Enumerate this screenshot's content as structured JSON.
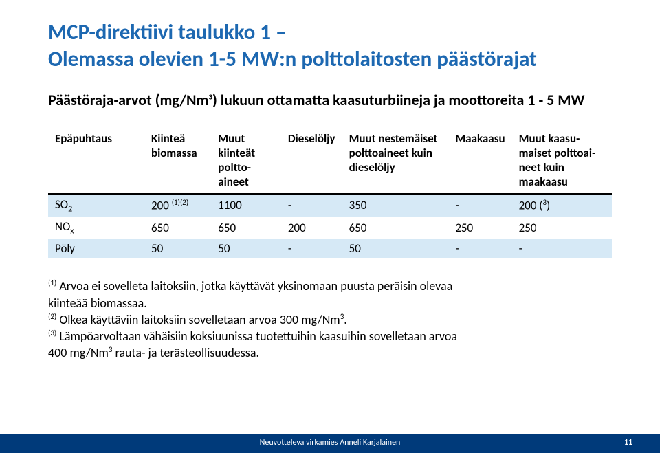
{
  "title_color": "#1d68b1",
  "title_line1": "MCP-direktiivi taulukko 1 –",
  "title_line2": "Olemassa olevien 1-5 MW:n polttolaitosten päästörajat",
  "subtitle_prefix": "Päästöraja-arvot (mg/Nm",
  "subtitle_sup": "3",
  "subtitle_suffix": ") lukuun ottamatta kaasuturbiineja ja moottoreita 1 - 5 MW",
  "table": {
    "header_bg": "#ffffff",
    "stripe_bg": "#d6e9f6",
    "columns": [
      "Epäpuhtaus",
      "Kiinteä biomassa",
      "Muut kiinteät poltto-aineet",
      "Dieselöljy",
      "Muut nestemäiset polttoaineet kuin dieselöljy",
      "Maakaasu",
      "Muut kaasu-maiset polttoai-neet kuin maakaasu"
    ],
    "rows": [
      {
        "label": "SO",
        "sub": "2",
        "cells": [
          "200",
          "1100",
          "-",
          "350",
          "-",
          "200 ("
        ],
        "c0_sup": "(1)(2)",
        "c5_sup": "3",
        "c5_tail": ")"
      },
      {
        "label": "NO",
        "sub": "x",
        "cells": [
          "650",
          "650",
          "200",
          "650",
          "250",
          "250"
        ]
      },
      {
        "label": "Pöly",
        "sub": "",
        "cells": [
          "50",
          "50",
          "-",
          "50",
          "-",
          "-"
        ]
      }
    ]
  },
  "notes": {
    "n1_sup": "(1)",
    "n1_a": " Arvoa ei sovelleta laitoksiin, jotka käyttävät yksinomaan puusta peräisin olevaa",
    "n1_b": "kiinteää biomassaa.",
    "n2_sup": "(2)",
    "n2_a": " Olkea käyttäviin laitoksiin sovelletaan arvoa 300 mg/Nm",
    "n2_sup2": "3",
    "n2_b": ".",
    "n3_sup": "(3)",
    "n3_a": " Lämpöarvoltaan vähäisiin koksiuunissa tuotettuihin kaasuihin sovelletaan arvoa",
    "n3_b": "400 mg/Nm",
    "n3_sup2": "3",
    "n3_c": " rauta- ja terästeollisuudessa."
  },
  "footer": {
    "text": "Neuvotteleva virkamies Anneli Karjalainen",
    "page": "11",
    "bg": "#003a7a"
  }
}
